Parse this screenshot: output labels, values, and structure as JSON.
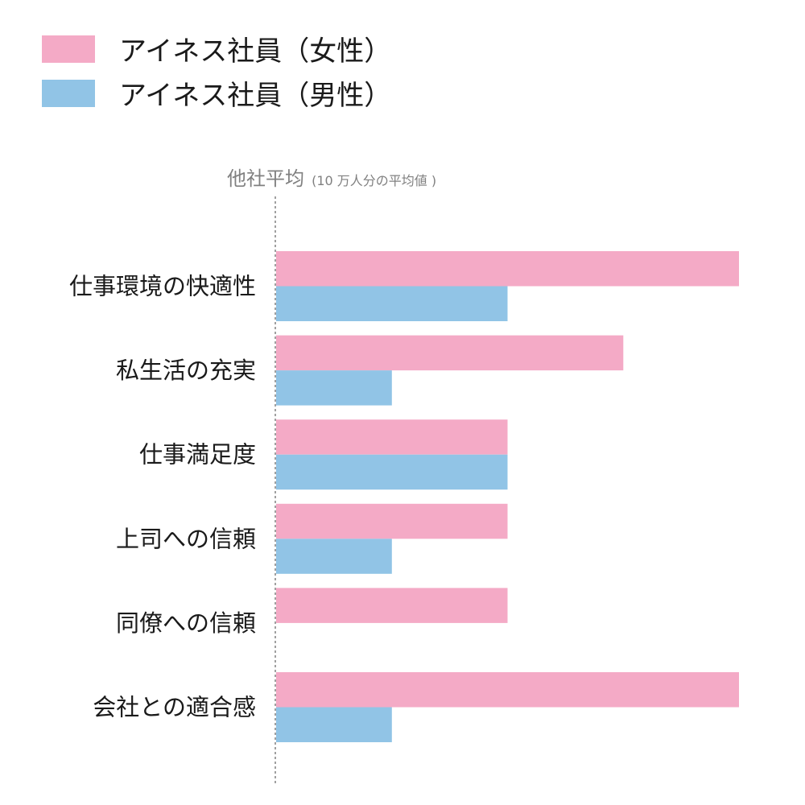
{
  "chart_data": {
    "type": "bar",
    "orientation": "horizontal",
    "categories": [
      "仕事環境の快適性",
      "私生活の充実",
      "仕事満足度",
      "上司への信頼",
      "同僚への信頼",
      "会社との適合感"
    ],
    "series": [
      {
        "name": "アイネス社員（女性）",
        "color": "#f4aac6",
        "values": [
          4,
          3,
          2,
          2,
          2,
          4
        ]
      },
      {
        "name": "アイネス社員（男性）",
        "color": "#91c4e6",
        "values": [
          2,
          1,
          2,
          1,
          0,
          1
        ]
      }
    ],
    "baseline": {
      "label": "他社平均",
      "sublabel": "(10 万人分の平均値 )"
    },
    "xlim": [
      0,
      4
    ],
    "grid": false,
    "legend_position": "top-left"
  }
}
